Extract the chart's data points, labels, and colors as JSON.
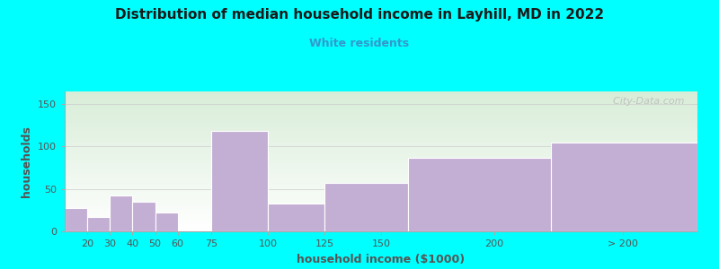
{
  "title": "Distribution of median household income in Layhill, MD in 2022",
  "subtitle": "White residents",
  "xlabel": "household income ($1000)",
  "ylabel": "households",
  "background_color": "#00FFFF",
  "plot_bg_gradient_top": "#d8edd8",
  "plot_bg_gradient_bottom": "#ffffff",
  "bar_color": "#c4afd4",
  "bar_edge_color": "#ffffff",
  "title_color": "#1a1a1a",
  "subtitle_color": "#3399cc",
  "axis_label_color": "#555555",
  "tick_label_color": "#555555",
  "values": [
    27,
    17,
    42,
    35,
    22,
    118,
    33,
    57,
    87,
    105
  ],
  "bar_lefts": [
    10,
    20,
    30,
    40,
    50,
    75,
    100,
    125,
    162,
    225
  ],
  "bar_widths": [
    10,
    10,
    10,
    10,
    10,
    25,
    25,
    37,
    63,
    65
  ],
  "xlim": [
    10,
    290
  ],
  "ylim": [
    0,
    165
  ],
  "yticks": [
    0,
    50,
    100,
    150
  ],
  "xtick_positions": [
    20,
    30,
    40,
    50,
    60,
    75,
    100,
    125,
    150,
    200,
    257
  ],
  "xtick_labels": [
    "20",
    "30",
    "40",
    "50",
    "60",
    "75",
    "100",
    "125",
    "150",
    "200",
    "> 200"
  ],
  "watermark": "  City-Data.com"
}
